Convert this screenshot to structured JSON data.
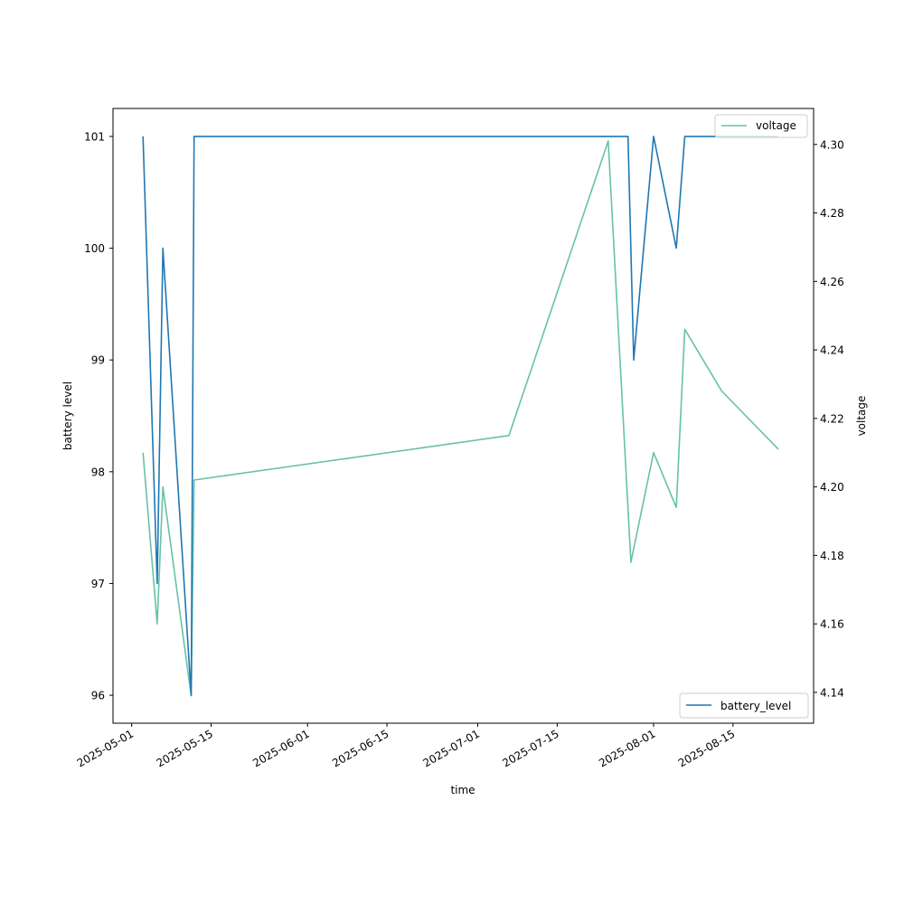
{
  "chart_data": {
    "type": "line",
    "xlabel": "time",
    "ylabel_left": "battery level",
    "ylabel_right": "voltage",
    "x_ticks": [
      "2025-05-01",
      "2025-05-15",
      "2025-06-01",
      "2025-06-15",
      "2025-07-01",
      "2025-07-15",
      "2025-08-01",
      "2025-08-15"
    ],
    "y_left_ticks": [
      96,
      97,
      98,
      99,
      100,
      101
    ],
    "y_right_ticks": [
      "4.14",
      "4.16",
      "4.18",
      "4.20",
      "4.22",
      "4.24",
      "4.26",
      "4.28",
      "4.30"
    ],
    "xlim": [
      "2025-04-27T17:00",
      "2025-08-29T05:00"
    ],
    "ylim_left": [
      95.75,
      101.25
    ],
    "ylim_right": [
      4.131,
      4.3105
    ],
    "grid": false,
    "series": [
      {
        "name": "battery_level",
        "axis": "left",
        "color": "#1f77b4",
        "legend_position": "lower right",
        "x": [
          "2025-05-03",
          "2025-05-05T12:00",
          "2025-05-06T12:00",
          "2025-05-11T12:00",
          "2025-05-12",
          "2025-07-27T12:00",
          "2025-07-28T12:00",
          "2025-08-01",
          "2025-08-05",
          "2025-08-06T12:00",
          "2025-08-23"
        ],
        "values": [
          101,
          97,
          100,
          96,
          101,
          101,
          99,
          101,
          100,
          101,
          101
        ]
      },
      {
        "name": "voltage",
        "axis": "right",
        "color": "#66c2a5",
        "legend_position": "upper right",
        "x": [
          "2025-05-03",
          "2025-05-05T12:00",
          "2025-05-06T12:00",
          "2025-05-11T12:00",
          "2025-05-12",
          "2025-07-06T12:00",
          "2025-07-24",
          "2025-07-28",
          "2025-08-01",
          "2025-08-05",
          "2025-08-06T12:00",
          "2025-08-13",
          "2025-08-23"
        ],
        "values": [
          4.21,
          4.16,
          4.2,
          4.139,
          4.202,
          4.215,
          4.301,
          4.178,
          4.21,
          4.194,
          4.246,
          4.228,
          4.211
        ]
      }
    ]
  }
}
